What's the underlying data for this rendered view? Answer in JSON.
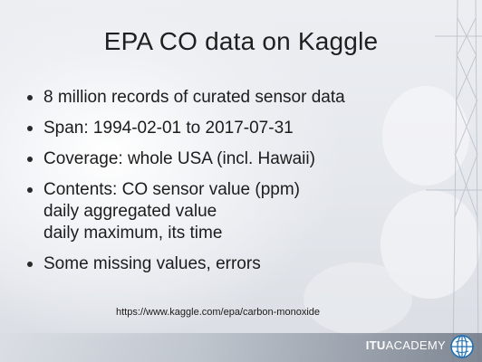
{
  "slide": {
    "title": "EPA CO data on Kaggle",
    "bullets": [
      {
        "lines": [
          "8 million records of curated sensor data"
        ]
      },
      {
        "lines": [
          "Span: 1994-02-01 to 2017-07-31"
        ]
      },
      {
        "lines": [
          "Coverage: whole USA (incl. Hawaii)"
        ]
      },
      {
        "lines": [
          "Contents: CO sensor value (ppm)",
          "daily aggregated value",
          "daily maximum, its time"
        ]
      },
      {
        "lines": [
          "Some missing values, errors"
        ]
      }
    ],
    "source_url": "https://www.kaggle.com/epa/carbon-monoxide"
  },
  "footer": {
    "brand_bold": "ITU",
    "brand_rest": "ACADEMY",
    "logo_icon": "itu-globe-logo-icon"
  },
  "colors": {
    "text": "#1c1c1c",
    "accent_blue": "#1e6fb4"
  }
}
